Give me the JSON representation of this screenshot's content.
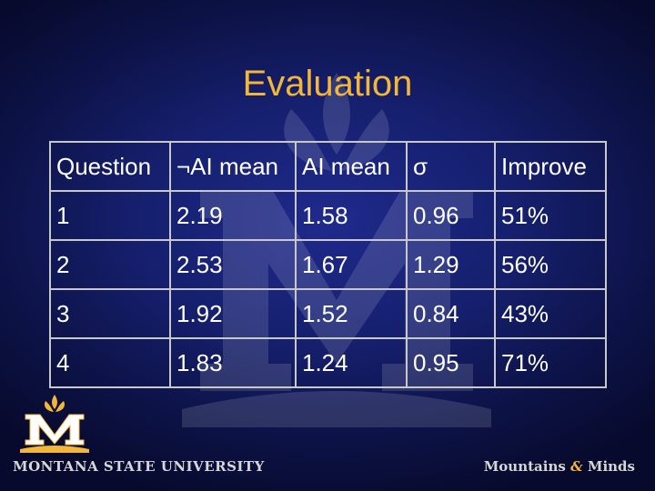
{
  "title": "Evaluation",
  "table": {
    "headers": [
      "Question",
      "¬AI mean",
      "AI mean",
      "σ",
      "Improve"
    ],
    "rows": [
      [
        "1",
        "2.19",
        "1.58",
        "0.96",
        "51%"
      ],
      [
        "2",
        "2.53",
        "1.67",
        "1.29",
        "56%"
      ],
      [
        "3",
        "1.92",
        "1.52",
        "0.84",
        "43%"
      ],
      [
        "4",
        "1.83",
        "1.24",
        "0.95",
        "71%"
      ]
    ]
  },
  "footer": {
    "university": "MONTANA STATE UNIVERSITY",
    "tagline_part1": "Mountains",
    "tagline_amp": "&",
    "tagline_part2": "Minds"
  },
  "colors": {
    "background": "#16206f",
    "title": "#f2b63a",
    "text": "#ffffff",
    "table_border": "#c8c8c8"
  },
  "icons": {
    "watermark": "msu-m-watermark-icon",
    "logo": "msu-m-logo-icon"
  }
}
